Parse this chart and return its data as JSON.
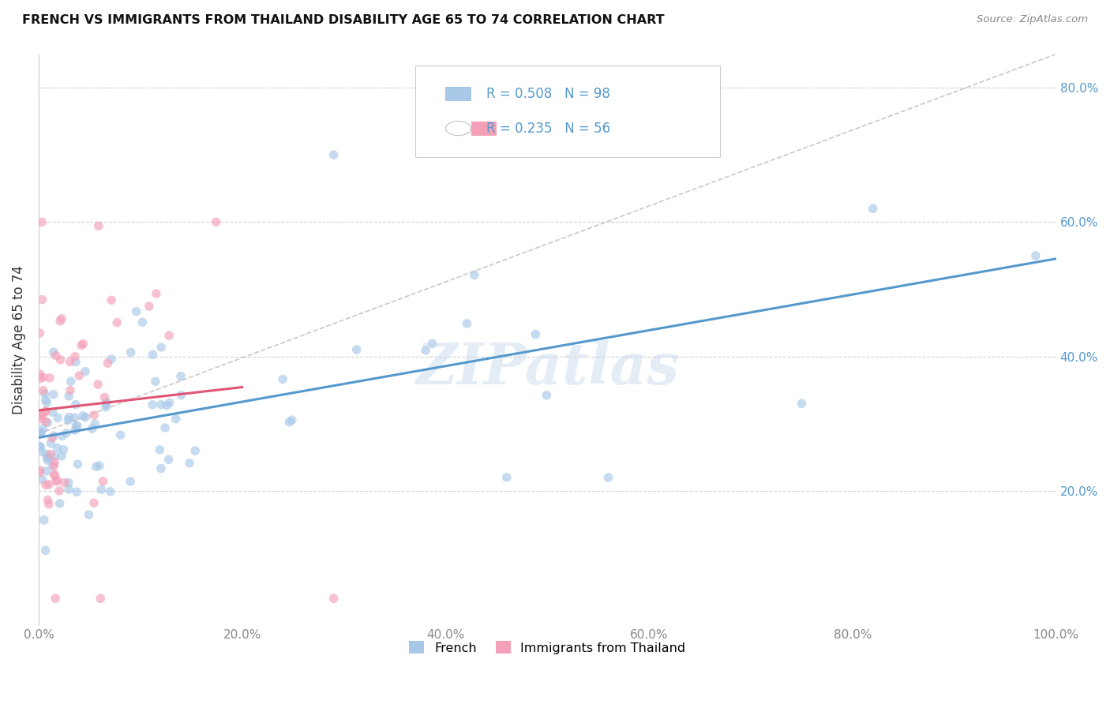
{
  "title": "FRENCH VS IMMIGRANTS FROM THAILAND DISABILITY AGE 65 TO 74 CORRELATION CHART",
  "source": "Source: ZipAtlas.com",
  "ylabel": "Disability Age 65 to 74",
  "watermark": "ZIPatlas",
  "french_color": "#a8c8e8",
  "french_line_color": "#5599cc",
  "thailand_color": "#f4a0b8",
  "thailand_line_color": "#e05575",
  "french_R": 0.508,
  "french_N": 98,
  "thailand_R": 0.235,
  "thailand_N": 56,
  "xlim": [
    0.0,
    1.0
  ],
  "ylim": [
    0.0,
    0.85
  ],
  "xticks": [
    0.0,
    0.2,
    0.4,
    0.6,
    0.8,
    1.0
  ],
  "yticks": [
    0.2,
    0.4,
    0.6,
    0.8
  ],
  "xticklabels": [
    "0.0%",
    "20.0%",
    "40.0%",
    "60.0%",
    "80.0%",
    "100.0%"
  ],
  "yticklabels_right": [
    "20.0%",
    "40.0%",
    "60.0%",
    "80.0%"
  ],
  "background_color": "#ffffff",
  "grid_color": "#d0d0d0",
  "marker_size": 70,
  "marker_alpha": 0.65,
  "french_legend": "French",
  "thailand_legend": "Immigrants from Thailand",
  "french_seed": 42,
  "thailand_seed": 17
}
